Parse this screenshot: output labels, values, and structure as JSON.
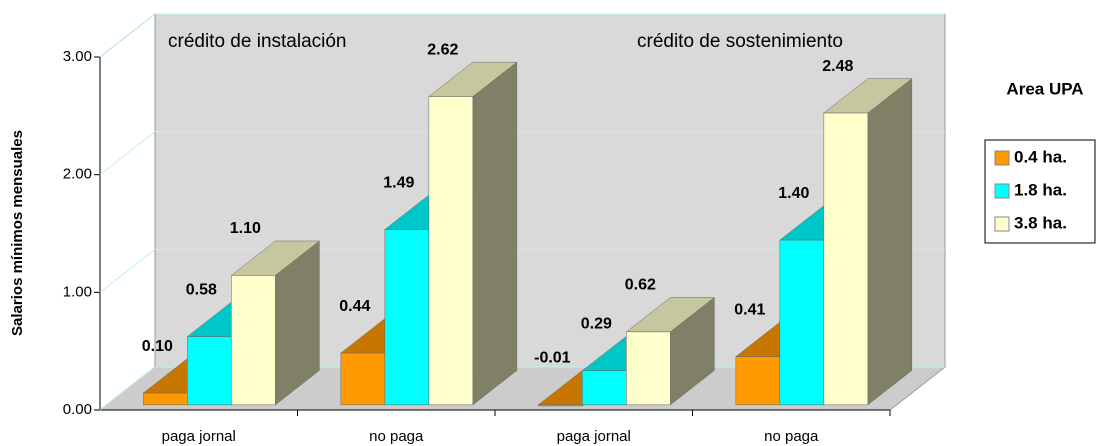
{
  "chart_data": {
    "type": "bar3d",
    "y_label": "Salarios mínimos mensuales",
    "annotations": [
      "crédito de instalación",
      "crédito de sostenimiento"
    ],
    "legend_title": "Area UPA",
    "legend_position": "right",
    "categories": [
      "paga jornal",
      "no paga",
      "paga jornal",
      "no paga"
    ],
    "series": [
      {
        "name": "0.4 ha.",
        "color": "#ff9900",
        "values": [
          0.1,
          0.44,
          -0.01,
          0.41
        ],
        "value_labels": [
          "0.10",
          "0.44",
          "-0.01",
          "0.41"
        ]
      },
      {
        "name": "1.8 ha.",
        "color": "#00ffff",
        "values": [
          0.58,
          1.49,
          0.29,
          1.4
        ],
        "value_labels": [
          "0.58",
          "1.49",
          "0.29",
          "1.40"
        ]
      },
      {
        "name": "3.8 ha.",
        "color": "#ffffcc",
        "values": [
          1.1,
          2.62,
          0.62,
          2.48
        ],
        "value_labels": [
          "1.10",
          "2.62",
          "0.62",
          "2.48"
        ]
      }
    ],
    "ylim": [
      0,
      3
    ],
    "yticks": [
      {
        "value": 0,
        "label": "0.00"
      },
      {
        "value": 1,
        "label": "1.00"
      },
      {
        "value": 2,
        "label": "2.00"
      },
      {
        "value": 3,
        "label": "3.00"
      }
    ],
    "grid": true
  }
}
